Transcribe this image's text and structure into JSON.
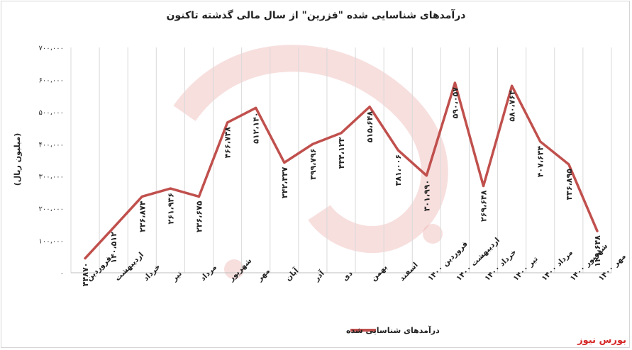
{
  "chart_data": {
    "type": "line",
    "title": "درآمدهای شناسایی شده \"فزرین\" از سال مالی گذشته تاکنون",
    "ylabel": "(میلیون ریال)",
    "ylim": [
      0,
      700000
    ],
    "yticks": [
      "۰",
      "۱۰۰،۰۰۰",
      "۲۰۰،۰۰۰",
      "۳۰۰،۰۰۰",
      "۴۰۰،۰۰۰",
      "۵۰۰،۰۰۰",
      "۶۰۰،۰۰۰",
      "۷۰۰،۰۰۰"
    ],
    "categories": [
      "فروردین",
      "اردیبهشت",
      "خرداد",
      "تیر",
      "مرداد",
      "شهریور",
      "مهر",
      "آبان",
      "آذر",
      "دی",
      "بهمن",
      "اسفند",
      "فروردین ۱۴۰۰",
      "اردیبهشت ۱۴۰۰",
      "خرداد ۱۴۰۰",
      "تیر ۱۴۰۰",
      "مرداد ۱۴۰۰",
      "شهریور ۱۴۰۰",
      "مهر ۱۴۰۰"
    ],
    "series": [
      {
        "name": "درآمدهای شناسایی شده",
        "color": "#c0504d",
        "values": [
          44870,
          140512,
          236874,
          261936,
          236675,
          466738,
          512140,
          342337,
          399796,
          434123,
          515648,
          381006,
          301990,
          590057,
          269648,
          580764,
          407634,
          336895,
          129648
        ],
        "labels": [
          "۴۴۸۷۰",
          "۱۴۰،۵۱۲",
          "۲۳۶،۸۷۴",
          "۲۶۱،۹۳۶",
          "۲۳۶،۶۷۵",
          "۴۶۶،۷۳۸",
          "۵۱۲،۱۴۰",
          "۳۴۲،۳۳۷",
          "۳۹۹،۷۹۶",
          "۴۳۴،۱۲۳",
          "۵۱۵،۶۴۸",
          "۳۸۱،۰۰۶",
          "۳۰۱،۹۹۰",
          "۵۹۰،۰۵۷",
          "۲۶۹،۶۴۸",
          "۵۸۰،۷۶۴",
          "۴۰۷،۶۳۴",
          "۳۳۶،۸۹۵",
          "۱۲۹،۶۴۸"
        ]
      }
    ],
    "legend_position": "bottom",
    "grid": "vertical"
  },
  "watermark": "بورس نیوز"
}
